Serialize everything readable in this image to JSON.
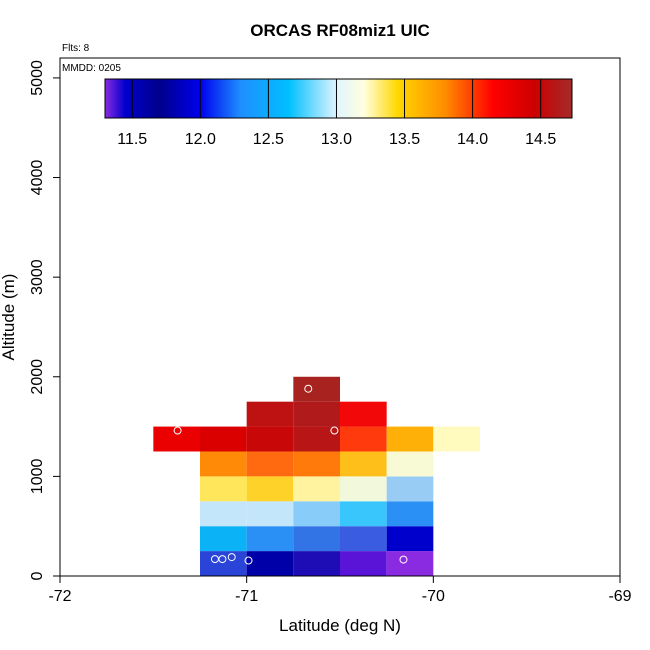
{
  "chart_data": {
    "type": "heatmap",
    "title": "ORCAS RF08miz1 UIC",
    "xlabel": "Latitude (deg N)",
    "ylabel": "Altitude (m)",
    "xlim": [
      -72,
      -69
    ],
    "ylim": [
      0,
      5200
    ],
    "x_ticks": [
      "-72",
      "-71",
      "-70",
      "-69"
    ],
    "y_ticks": [
      "0",
      "1000",
      "2000",
      "3000",
      "4000",
      "5000"
    ],
    "annotations": {
      "flights": "Flts: 8",
      "date": "MMDD: 0205"
    },
    "colorbar": {
      "min": 11.3,
      "max": 14.73,
      "ticks": [
        "11.5",
        "12.0",
        "12.5",
        "13.0",
        "13.5",
        "14.0",
        "14.5"
      ],
      "stops": [
        {
          "v": 11.3,
          "c": "#8a2be2"
        },
        {
          "v": 11.45,
          "c": "#0000cd"
        },
        {
          "v": 11.7,
          "c": "#00008b"
        },
        {
          "v": 12.0,
          "c": "#0000ee"
        },
        {
          "v": 12.3,
          "c": "#1e90ff"
        },
        {
          "v": 12.65,
          "c": "#00bfff"
        },
        {
          "v": 13.0,
          "c": "#e0f4ff"
        },
        {
          "v": 13.2,
          "c": "#ffffe0"
        },
        {
          "v": 13.45,
          "c": "#ffd700"
        },
        {
          "v": 13.8,
          "c": "#ff8c00"
        },
        {
          "v": 14.15,
          "c": "#ff0000"
        },
        {
          "v": 14.45,
          "c": "#cd0000"
        },
        {
          "v": 14.73,
          "c": "#a52a2a"
        }
      ]
    },
    "bin_width_deg": 0.25,
    "bin_height_m": 250,
    "cells": [
      {
        "x": -71.125,
        "y": 125,
        "color": "#2944d6"
      },
      {
        "x": -70.875,
        "y": 125,
        "color": "#0000a8"
      },
      {
        "x": -70.625,
        "y": 125,
        "color": "#1e0cb4"
      },
      {
        "x": -70.375,
        "y": 125,
        "color": "#5a14d8"
      },
      {
        "x": -70.125,
        "y": 125,
        "color": "#8a2be2"
      },
      {
        "x": -71.125,
        "y": 375,
        "color": "#0bb2f6"
      },
      {
        "x": -70.875,
        "y": 375,
        "color": "#2a90f6"
      },
      {
        "x": -70.625,
        "y": 375,
        "color": "#3273e6"
      },
      {
        "x": -70.375,
        "y": 375,
        "color": "#3a5ce0"
      },
      {
        "x": -70.125,
        "y": 375,
        "color": "#0000cd"
      },
      {
        "x": -71.125,
        "y": 625,
        "color": "#c4e6fa"
      },
      {
        "x": -70.875,
        "y": 625,
        "color": "#c4e6fa"
      },
      {
        "x": -70.625,
        "y": 625,
        "color": "#88ccfa"
      },
      {
        "x": -70.375,
        "y": 625,
        "color": "#38c6fc"
      },
      {
        "x": -70.125,
        "y": 625,
        "color": "#2a90f6"
      },
      {
        "x": -71.125,
        "y": 875,
        "color": "#ffe65a"
      },
      {
        "x": -70.875,
        "y": 875,
        "color": "#ffd22a"
      },
      {
        "x": -70.625,
        "y": 875,
        "color": "#fff3a0"
      },
      {
        "x": -70.375,
        "y": 875,
        "color": "#f2f8dc"
      },
      {
        "x": -70.125,
        "y": 875,
        "color": "#98ccf4"
      },
      {
        "x": -71.125,
        "y": 1125,
        "color": "#ff8a08"
      },
      {
        "x": -70.875,
        "y": 1125,
        "color": "#ff6a10"
      },
      {
        "x": -70.625,
        "y": 1125,
        "color": "#ff7a0a"
      },
      {
        "x": -70.375,
        "y": 1125,
        "color": "#ffbf1a"
      },
      {
        "x": -70.125,
        "y": 1125,
        "color": "#f8fad6"
      },
      {
        "x": -71.375,
        "y": 1375,
        "color": "#ea0000"
      },
      {
        "x": -71.125,
        "y": 1375,
        "color": "#da0000"
      },
      {
        "x": -70.875,
        "y": 1375,
        "color": "#c80808"
      },
      {
        "x": -70.625,
        "y": 1375,
        "color": "#b81616"
      },
      {
        "x": -70.375,
        "y": 1375,
        "color": "#ff3a0c"
      },
      {
        "x": -70.125,
        "y": 1375,
        "color": "#ffb008"
      },
      {
        "x": -69.875,
        "y": 1375,
        "color": "#fffabe"
      },
      {
        "x": -70.875,
        "y": 1625,
        "color": "#be1212"
      },
      {
        "x": -70.625,
        "y": 1625,
        "color": "#b01a1a"
      },
      {
        "x": -70.375,
        "y": 1625,
        "color": "#f20808"
      },
      {
        "x": -70.625,
        "y": 1875,
        "color": "#a8231f"
      }
    ],
    "points": [
      {
        "x": -71.17,
        "y": 170
      },
      {
        "x": -71.13,
        "y": 170
      },
      {
        "x": -71.08,
        "y": 190
      },
      {
        "x": -70.99,
        "y": 155
      },
      {
        "x": -70.16,
        "y": 165
      },
      {
        "x": -71.37,
        "y": 1460
      },
      {
        "x": -70.53,
        "y": 1460
      },
      {
        "x": -70.67,
        "y": 1880
      }
    ]
  }
}
